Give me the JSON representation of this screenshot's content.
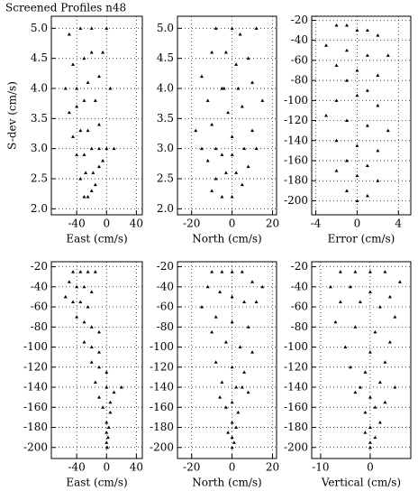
{
  "title": "Screened Profiles n48",
  "chart_data": [
    {
      "type": "scatter",
      "x_label": "East (cm/s)",
      "y_label": "S-dev (cm/s)",
      "color": "#000000",
      "grid": true,
      "xlim": [
        -74,
        48
      ],
      "ylim": [
        1.9,
        5.2
      ],
      "xticks": [
        -40,
        0,
        40
      ],
      "yticks": [
        {
          "value": 2,
          "label": "2.0"
        },
        {
          "value": 2.5,
          "label": "2.5"
        },
        {
          "value": 3,
          "label": "3.0"
        },
        {
          "value": 3.5,
          "label": "3.5"
        },
        {
          "value": 4,
          "label": "4.0"
        },
        {
          "value": 4.5,
          "label": "4.5"
        },
        {
          "value": 5,
          "label": "5.0"
        }
      ],
      "x": [
        -30,
        -25,
        -20,
        -15,
        -35,
        -28,
        -18,
        -10,
        -5,
        -40,
        -30,
        -20,
        -10,
        0,
        10,
        -45,
        -35,
        -25,
        -10,
        -50,
        -40,
        -30,
        -15,
        -55,
        -40,
        -25,
        -10,
        5,
        -45,
        -30,
        -20,
        -5,
        -50,
        -35,
        -20,
        0
      ],
      "values": [
        2.2,
        2.2,
        2.3,
        2.4,
        2.5,
        2.6,
        2.6,
        2.7,
        2.8,
        2.9,
        2.9,
        3.0,
        3.0,
        3.0,
        3.0,
        3.2,
        3.3,
        3.3,
        3.4,
        3.6,
        3.7,
        3.8,
        3.8,
        4.0,
        4.0,
        4.1,
        4.2,
        4.0,
        4.4,
        4.5,
        4.6,
        4.6,
        4.9,
        5.0,
        5.0,
        5.0
      ]
    },
    {
      "type": "scatter",
      "x_label": "North (cm/s)",
      "color": "#000000",
      "grid": true,
      "xlim": [
        -27,
        22
      ],
      "ylim": [
        1.9,
        5.2
      ],
      "xticks": [
        -20,
        0,
        20
      ],
      "yticks": [
        {
          "value": 2,
          "label": "2.0"
        },
        {
          "value": 2.5,
          "label": "2.5"
        },
        {
          "value": 3,
          "label": "3.0"
        },
        {
          "value": 3.5,
          "label": "3.5"
        },
        {
          "value": 4,
          "label": "4.0"
        },
        {
          "value": 4.5,
          "label": "4.5"
        },
        {
          "value": 5,
          "label": "5.0"
        }
      ],
      "x": [
        -5,
        0,
        -10,
        5,
        -8,
        -3,
        2,
        8,
        -12,
        -5,
        0,
        6,
        12,
        -15,
        -8,
        0,
        10,
        -18,
        -10,
        -2,
        5,
        15,
        -12,
        -4,
        3,
        10,
        -15,
        -5,
        2,
        8,
        -10,
        -3,
        4,
        12,
        -8,
        0
      ],
      "values": [
        2.2,
        2.2,
        2.3,
        2.4,
        2.5,
        2.6,
        2.6,
        2.7,
        2.8,
        2.9,
        2.9,
        3.0,
        3.0,
        3.0,
        3.0,
        3.2,
        3.3,
        3.3,
        3.4,
        3.6,
        3.7,
        3.8,
        3.8,
        4.0,
        4.0,
        4.1,
        4.2,
        4.0,
        4.4,
        4.5,
        4.6,
        4.6,
        4.9,
        5.0,
        5.0,
        5.0
      ]
    },
    {
      "type": "scatter",
      "x_label": "Error (cm/s)",
      "color": "#000000",
      "grid": true,
      "xlim": [
        -4.4,
        5.2
      ],
      "ylim": [
        -214,
        -16
      ],
      "xticks": [
        -4,
        0,
        4
      ],
      "yticks": [
        -20,
        -40,
        -60,
        -80,
        -100,
        -120,
        -140,
        -160,
        -180,
        -200
      ],
      "x": [
        -2,
        -1,
        0,
        1,
        2,
        -3,
        -1,
        1,
        3,
        -2,
        0,
        2,
        -1,
        1,
        0,
        -2,
        2,
        -3,
        -1,
        1,
        3,
        -2,
        0,
        2,
        -1,
        1,
        -2,
        0,
        2,
        -1,
        1,
        0
      ],
      "values": [
        -25,
        -25,
        -30,
        -30,
        -35,
        -45,
        -50,
        -55,
        -55,
        -65,
        -70,
        -75,
        -80,
        -90,
        -95,
        -100,
        -105,
        -115,
        -120,
        -125,
        -130,
        -140,
        -145,
        -150,
        -160,
        -165,
        -170,
        -175,
        -180,
        -190,
        -195,
        -200
      ]
    },
    {
      "type": "scatter",
      "x_label": "East (cm/s)",
      "color": "#000000",
      "grid": true,
      "xlim": [
        -74,
        48
      ],
      "ylim": [
        -211,
        -15
      ],
      "xticks": [
        -40,
        0,
        40
      ],
      "yticks": [
        -20,
        -40,
        -60,
        -80,
        -100,
        -120,
        -140,
        -160,
        -180,
        -200
      ],
      "x": [
        -45,
        -35,
        -25,
        -15,
        -50,
        -40,
        -30,
        -20,
        -55,
        -45,
        -35,
        -25,
        -40,
        -30,
        -20,
        -10,
        -30,
        -20,
        -10,
        -20,
        -10,
        0,
        -15,
        0,
        10,
        -10,
        5,
        20,
        -5,
        5,
        0,
        3,
        0,
        2,
        0,
        1
      ],
      "values": [
        -25,
        -25,
        -25,
        -25,
        -35,
        -40,
        -40,
        -45,
        -50,
        -55,
        -55,
        -60,
        -70,
        -75,
        -80,
        -85,
        -95,
        -100,
        -105,
        -115,
        -120,
        -125,
        -135,
        -140,
        -145,
        -150,
        -155,
        -140,
        -160,
        -165,
        -175,
        -180,
        -185,
        -190,
        -195,
        -200
      ]
    },
    {
      "type": "scatter",
      "x_label": "North (cm/s)",
      "color": "#000000",
      "grid": true,
      "xlim": [
        -27,
        22
      ],
      "ylim": [
        -211,
        -15
      ],
      "xticks": [
        -20,
        0,
        20
      ],
      "yticks": [
        -20,
        -40,
        -60,
        -80,
        -100,
        -120,
        -140,
        -160,
        -180,
        -200
      ],
      "x": [
        -10,
        -5,
        0,
        5,
        10,
        15,
        -12,
        -6,
        0,
        6,
        12,
        -15,
        -8,
        0,
        8,
        -10,
        -3,
        4,
        10,
        -8,
        0,
        6,
        -5,
        2,
        8,
        -6,
        0,
        5,
        -3,
        3,
        0,
        2,
        -2,
        0,
        1,
        0
      ],
      "values": [
        -25,
        -25,
        -25,
        -25,
        -35,
        -40,
        -40,
        -45,
        -50,
        -55,
        -55,
        -60,
        -70,
        -75,
        -80,
        -85,
        -95,
        -100,
        -105,
        -115,
        -120,
        -125,
        -135,
        -140,
        -145,
        -150,
        -155,
        -140,
        -160,
        -165,
        -175,
        -180,
        -185,
        -190,
        -195,
        -200
      ]
    },
    {
      "type": "scatter",
      "x_label": "Vertical (cm/s)",
      "color": "#000000",
      "grid": true,
      "xlim": [
        -11.8,
        8.2
      ],
      "ylim": [
        -211,
        -15
      ],
      "xticks": [
        -10,
        0
      ],
      "yticks": [
        -20,
        -40,
        -60,
        -80,
        -100,
        -120,
        -140,
        -160,
        -180,
        -200
      ],
      "x": [
        -6,
        -3,
        0,
        3,
        6,
        -8,
        -4,
        0,
        4,
        -6,
        -2,
        2,
        5,
        -7,
        -3,
        1,
        4,
        -5,
        0,
        3,
        -4,
        -1,
        2,
        5,
        -3,
        0,
        3,
        -2,
        1,
        -1,
        2,
        0,
        -1,
        1,
        0,
        0
      ],
      "values": [
        -25,
        -25,
        -25,
        -25,
        -35,
        -40,
        -40,
        -45,
        -50,
        -55,
        -55,
        -60,
        -70,
        -75,
        -80,
        -85,
        -95,
        -100,
        -105,
        -115,
        -120,
        -125,
        -135,
        -140,
        -145,
        -150,
        -155,
        -140,
        -160,
        -165,
        -175,
        -180,
        -185,
        -190,
        -195,
        -200
      ]
    }
  ]
}
